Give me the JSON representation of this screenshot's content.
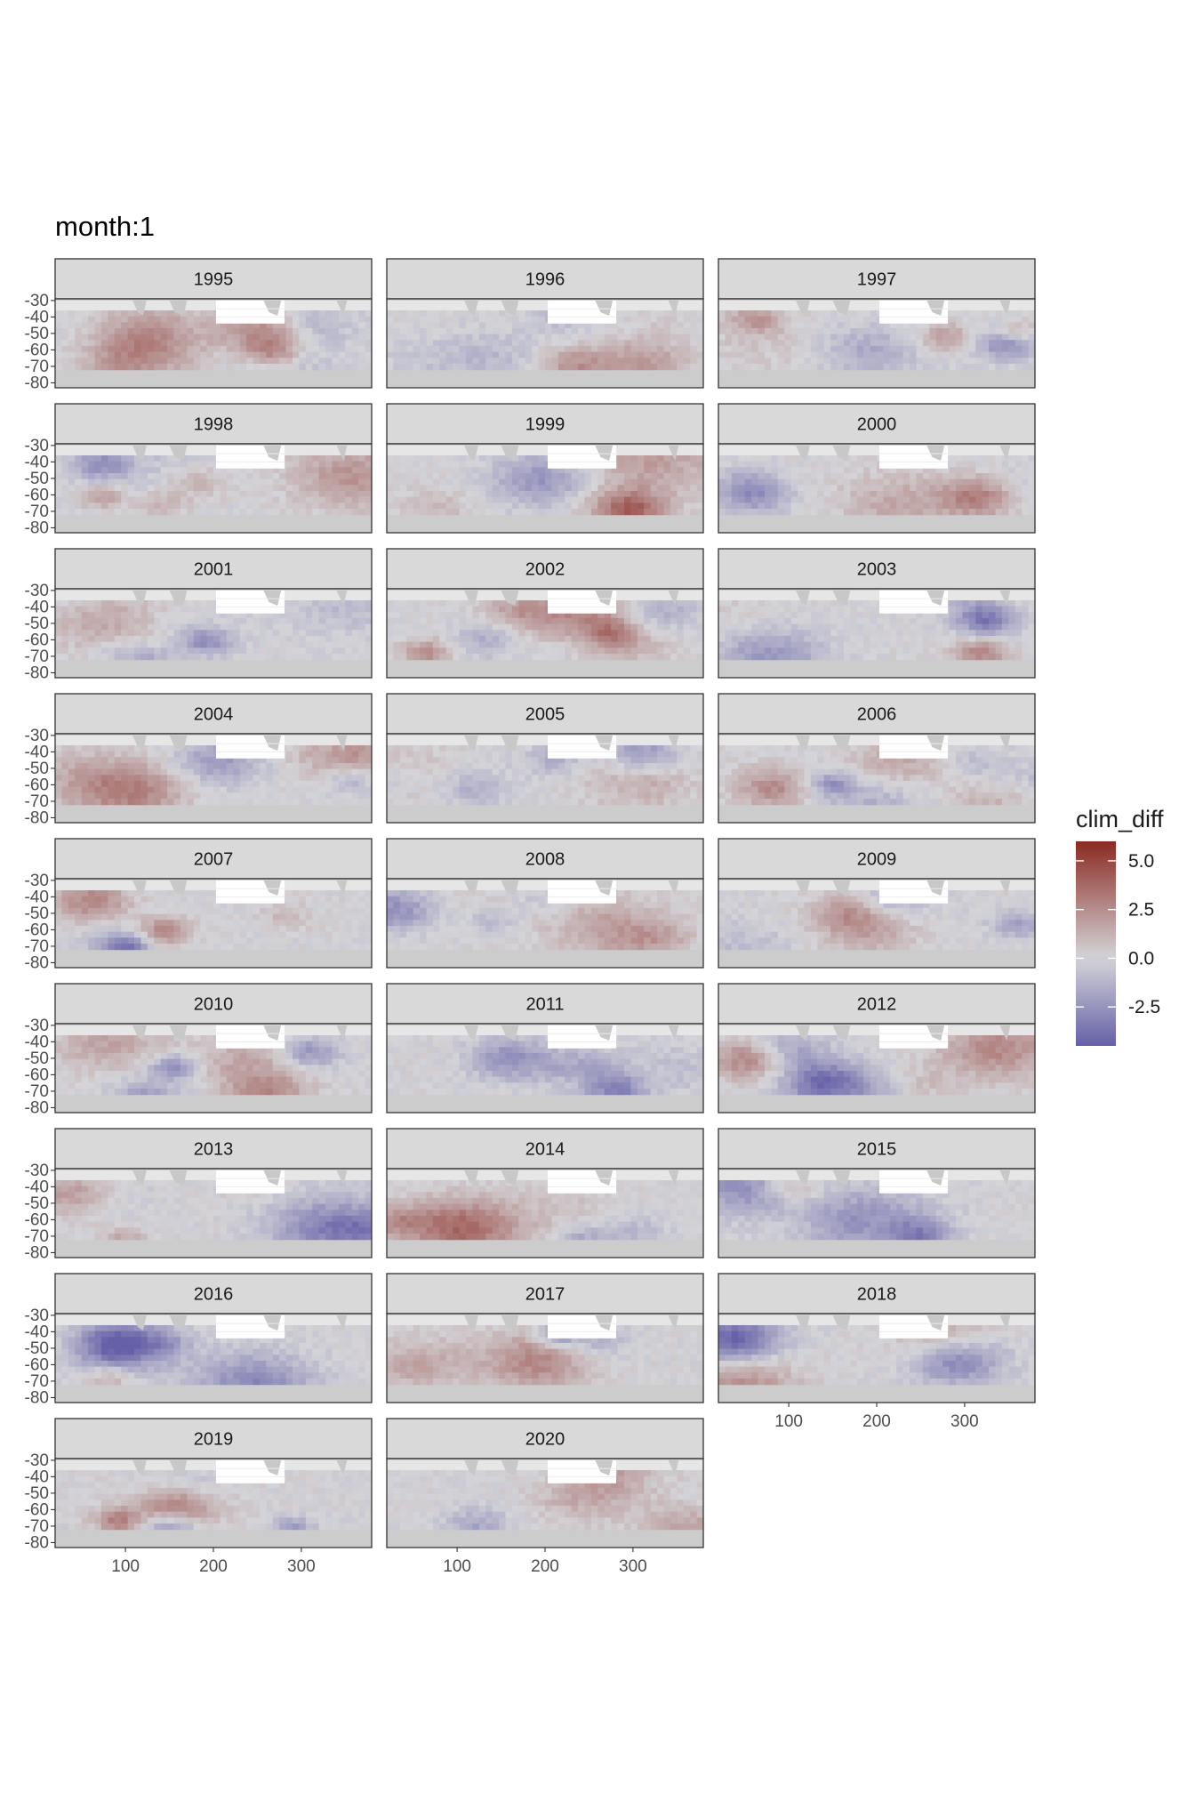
{
  "chart_data": {
    "type": "heatmap",
    "title": "month:1",
    "facet_variable": "year",
    "panels": [
      "1995",
      "1996",
      "1997",
      "1998",
      "1999",
      "2000",
      "2001",
      "2002",
      "2003",
      "2004",
      "2005",
      "2006",
      "2007",
      "2008",
      "2009",
      "2010",
      "2011",
      "2012",
      "2013",
      "2014",
      "2015",
      "2016",
      "2017",
      "2018",
      "2019",
      "2020"
    ],
    "x_ticks": [
      100,
      200,
      300
    ],
    "x_range": [
      20,
      380
    ],
    "y_ticks": [
      -30,
      -40,
      -50,
      -60,
      -70,
      -80
    ],
    "y_tick_labels": [
      "-30",
      "-40",
      "-50",
      "-60",
      "-70",
      "-80"
    ],
    "y_range": [
      -83,
      -29
    ],
    "legend": {
      "title": "clim_diff",
      "position": "right",
      "breaks": [
        5.0,
        2.5,
        0.0,
        -2.5
      ],
      "labels": [
        "5.0",
        "2.5",
        "0.0",
        "-2.5"
      ],
      "range": [
        -4.5,
        6.0
      ],
      "colors": {
        "low": "#6560a8",
        "mid": "#d4d4d8",
        "high": "#8b2a22"
      }
    },
    "background": {
      "land_mask": "#cccccc",
      "no_data": "#ffffff",
      "panel_border": "#333333",
      "strip_fill": "#d9d9d9"
    },
    "grid": true
  }
}
